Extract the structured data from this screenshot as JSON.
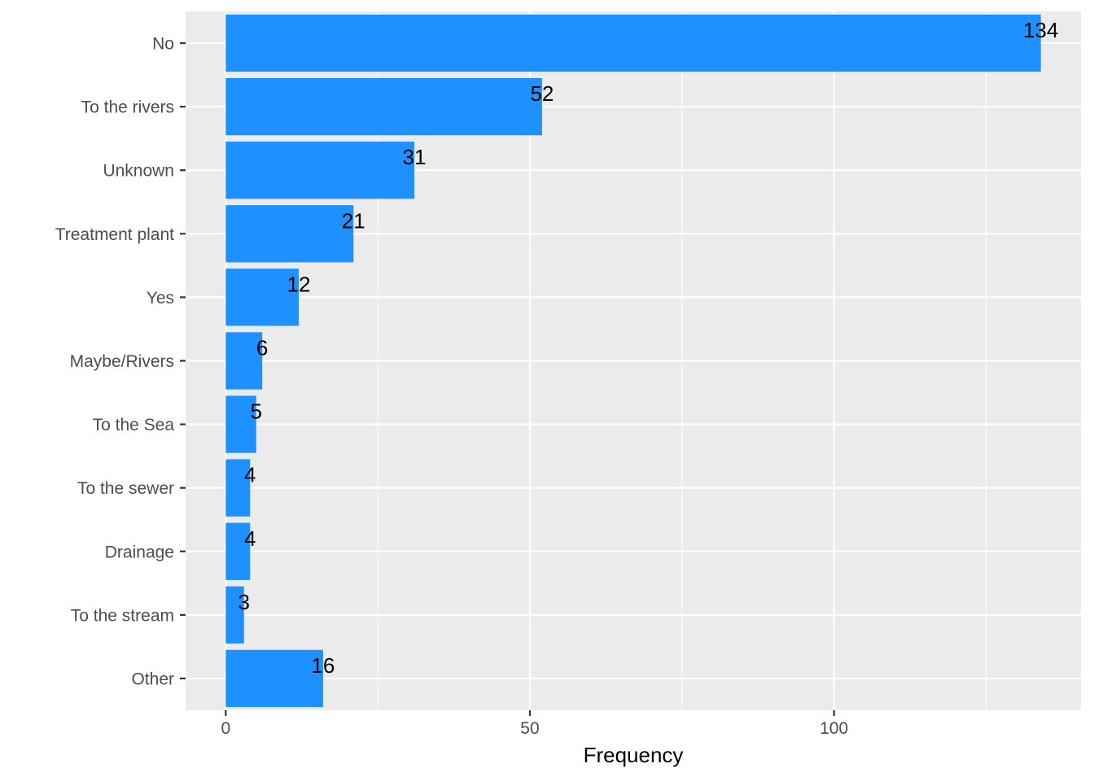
{
  "chart_data": {
    "type": "bar",
    "orientation": "horizontal",
    "categories": [
      "No",
      "To the rivers",
      "Unknown",
      "Treatment plant",
      "Yes",
      "Maybe/Rivers",
      "To the Sea",
      "To the sewer",
      "Drainage",
      "To the stream",
      "Other"
    ],
    "values": [
      134,
      52,
      31,
      21,
      12,
      6,
      5,
      4,
      4,
      3,
      16
    ],
    "data_labels": [
      "134",
      "52",
      "31",
      "21",
      "12",
      "6",
      "5",
      "4",
      "4",
      "3",
      "16"
    ],
    "xlabel": "Frequency",
    "ylabel": "",
    "title": "",
    "xlim": [
      -6.6,
      140.6
    ],
    "x_ticks": [
      0,
      50,
      100
    ],
    "x_tick_labels": [
      "0",
      "50",
      "100"
    ],
    "grid": true,
    "legend": "none",
    "colors": {
      "bar": "#1E90FF",
      "panel": "#EBEBEB",
      "grid": "#FFFFFF",
      "label_text": "#000000",
      "axis_text": "#4D4D4D"
    }
  }
}
